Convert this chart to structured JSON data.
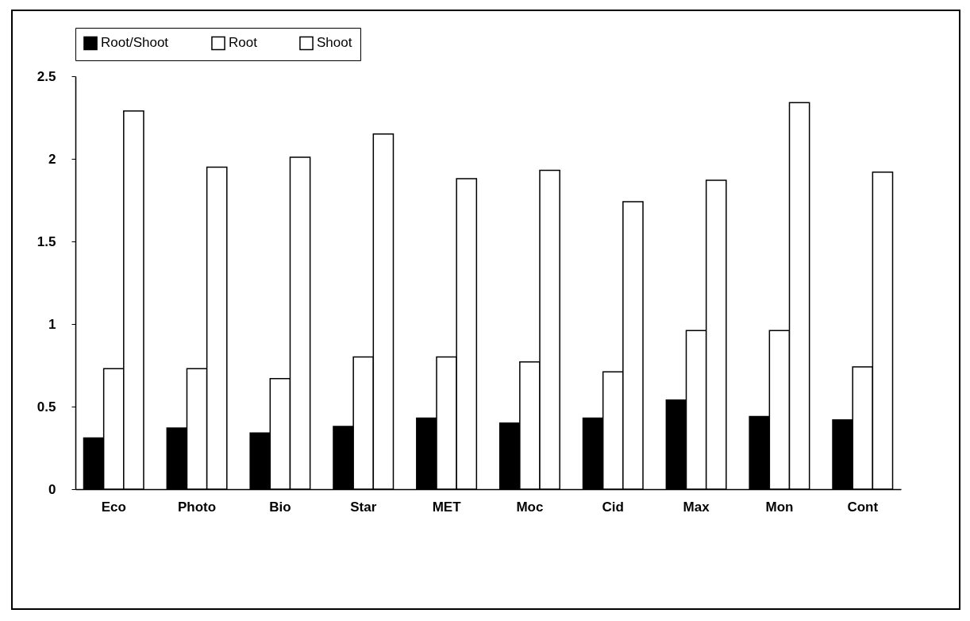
{
  "chart_data": {
    "type": "bar",
    "categories": [
      "Eco",
      "Photo",
      "Bio",
      "Star",
      "MET",
      "Moc",
      "Cid",
      "Max",
      "Mon",
      "Cont"
    ],
    "series": [
      {
        "name": "Root/Shoot",
        "color": "#000000",
        "values": [
          0.31,
          0.37,
          0.34,
          0.38,
          0.43,
          0.4,
          0.43,
          0.54,
          0.44,
          0.42
        ]
      },
      {
        "name": "Root",
        "color": "#ffffff",
        "values": [
          0.73,
          0.73,
          0.67,
          0.8,
          0.8,
          0.77,
          0.71,
          0.96,
          0.96,
          0.74
        ]
      },
      {
        "name": "Shoot",
        "color": "#ffffff",
        "values": [
          2.29,
          1.95,
          2.01,
          2.15,
          1.88,
          1.93,
          1.74,
          1.87,
          2.34,
          1.92
        ]
      }
    ],
    "ylim": [
      0,
      2.5
    ],
    "yticks": [
      0,
      0.5,
      1,
      1.5,
      2,
      2.5
    ],
    "grid": false,
    "legend": "top"
  }
}
